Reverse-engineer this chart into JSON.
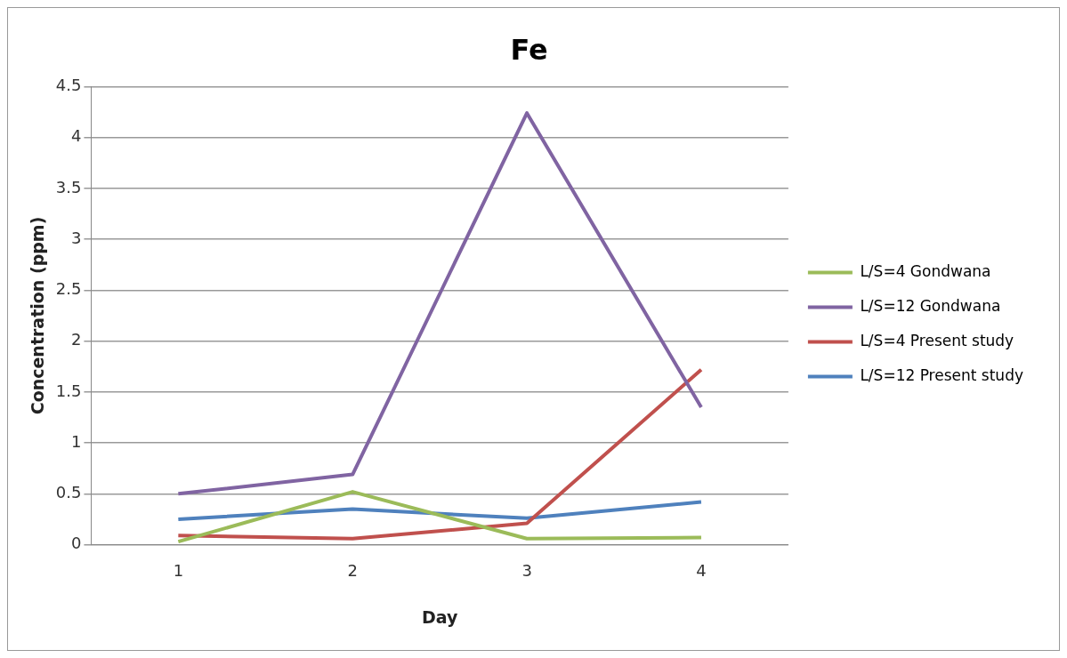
{
  "chart_data": {
    "type": "line",
    "title": "Fe",
    "xlabel": "Day",
    "ylabel": "Concentration (ppm)",
    "categories": [
      "1",
      "2",
      "3",
      "4"
    ],
    "series": [
      {
        "name": "L/S=4 Gondwana",
        "color": "#9bbb59",
        "values": [
          0.03,
          0.52,
          0.06,
          0.07
        ]
      },
      {
        "name": "L/S=12 Gondwana",
        "color": "#8064a2",
        "values": [
          0.5,
          0.69,
          4.24,
          1.35
        ]
      },
      {
        "name": "L/S=4 Present study",
        "color": "#c0504d",
        "values": [
          0.09,
          0.06,
          0.21,
          1.72
        ]
      },
      {
        "name": "L/S=12 Present study",
        "color": "#4f81bd",
        "values": [
          0.25,
          0.35,
          0.26,
          0.42
        ]
      }
    ],
    "ylim": [
      0,
      4.5
    ],
    "yticks": [
      0,
      0.5,
      1,
      1.5,
      2,
      2.5,
      3,
      3.5,
      4,
      4.5
    ],
    "grid": "y",
    "legend": "right",
    "marker": "none",
    "line_style": "solid"
  }
}
